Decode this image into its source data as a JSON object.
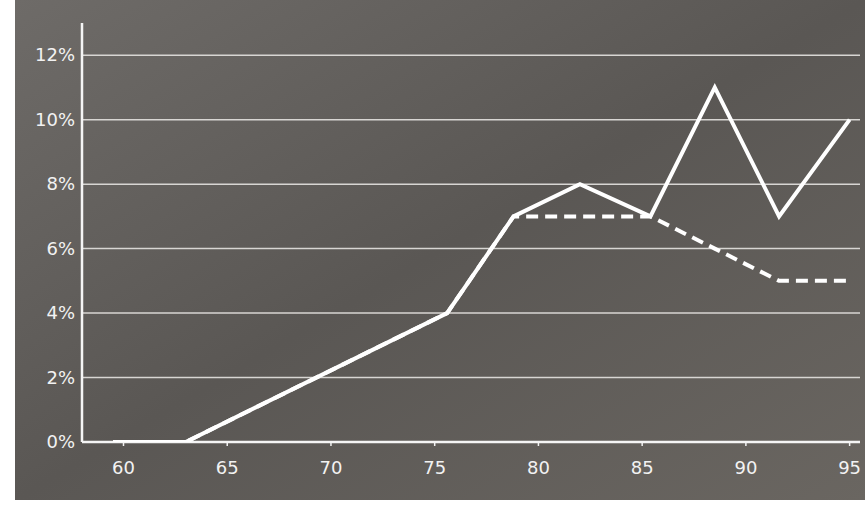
{
  "chart_data": {
    "type": "line",
    "x": [
      59.5,
      63,
      75.6,
      78.8,
      82,
      85.4,
      88.5,
      91.6,
      95
    ],
    "series": [
      {
        "color": "#ffffff",
        "line_style": "solid",
        "values": [
          0,
          0,
          4,
          7,
          8,
          7,
          11,
          7,
          10
        ]
      },
      {
        "color": "#ffffff",
        "line_style": "dashed",
        "values": [
          0,
          0,
          4,
          7,
          7,
          7,
          6,
          5,
          5
        ]
      }
    ],
    "xlim": [
      58,
      95.5
    ],
    "xticks": [
      60,
      65,
      70,
      75,
      80,
      85,
      90,
      95
    ],
    "ylim": [
      0,
      13
    ],
    "yticks": [
      {
        "value": 0,
        "label": "0%"
      },
      {
        "value": 2,
        "label": "2%"
      },
      {
        "value": 4,
        "label": "4%"
      },
      {
        "value": 6,
        "label": "6%"
      },
      {
        "value": 8,
        "label": "8%"
      },
      {
        "value": 10,
        "label": "10%"
      },
      {
        "value": 12,
        "label": "12%"
      }
    ],
    "grid": true
  }
}
